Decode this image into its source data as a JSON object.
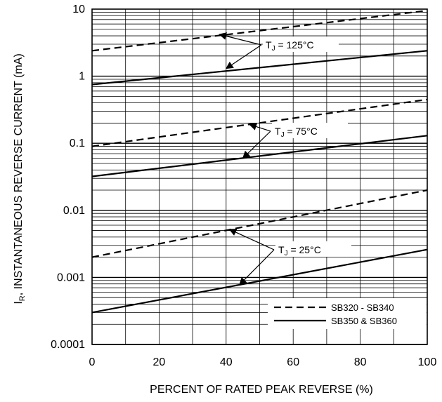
{
  "chart_data": {
    "type": "line",
    "title": "",
    "xlabel": "PERCENT OF RATED PEAK REVERSE (%)",
    "ylabel_main": "I",
    "ylabel_sub": "R",
    "ylabel_rest": ", INSTANTANEOUS REVERSE CURRENT (mA)",
    "xlim": [
      0,
      100
    ],
    "ylim": [
      0.0001,
      10
    ],
    "yscale": "log",
    "grid": true,
    "x_ticks": [
      {
        "value": 0,
        "label": "0"
      },
      {
        "value": 20,
        "label": "20"
      },
      {
        "value": 40,
        "label": "40"
      },
      {
        "value": 60,
        "label": "60"
      },
      {
        "value": 80,
        "label": "80"
      },
      {
        "value": 100,
        "label": "100"
      }
    ],
    "y_ticks": [
      {
        "value": 10,
        "label": "10"
      },
      {
        "value": 1,
        "label": "1"
      },
      {
        "value": 0.1,
        "label": "0.1"
      },
      {
        "value": 0.01,
        "label": "0.01"
      },
      {
        "value": 0.001,
        "label": "0.001"
      },
      {
        "value": 0.0001,
        "label": "0.0001"
      }
    ],
    "legend": {
      "position": "bottom-right",
      "entries": [
        {
          "label": "SB320 - SB340",
          "style": "dashed"
        },
        {
          "label": "SB350 & SB360",
          "style": "solid"
        }
      ]
    },
    "series": [
      {
        "group": "125",
        "style": "dashed",
        "x": [
          0,
          100
        ],
        "y": [
          2.4,
          9.5
        ]
      },
      {
        "group": "125",
        "style": "solid",
        "x": [
          0,
          100
        ],
        "y": [
          0.75,
          2.4
        ]
      },
      {
        "group": "75",
        "style": "dashed",
        "x": [
          0,
          100
        ],
        "y": [
          0.09,
          0.45
        ]
      },
      {
        "group": "75",
        "style": "solid",
        "x": [
          0,
          100
        ],
        "y": [
          0.032,
          0.13
        ]
      },
      {
        "group": "25",
        "style": "dashed",
        "x": [
          0,
          100
        ],
        "y": [
          0.002,
          0.02
        ]
      },
      {
        "group": "25",
        "style": "solid",
        "x": [
          0,
          100
        ],
        "y": [
          0.0003,
          0.0026
        ]
      }
    ],
    "annotations": [
      {
        "main": "T",
        "sub": "J",
        "rest": " = 125°C",
        "targets": [
          {
            "x": 38,
            "y": 4.2
          },
          {
            "x": 40,
            "y": 1.3
          }
        ]
      },
      {
        "main": "T",
        "sub": "J",
        "rest": " = 75°C",
        "targets": [
          {
            "x": 47,
            "y": 0.19
          },
          {
            "x": 45,
            "y": 0.06
          }
        ]
      },
      {
        "main": "T",
        "sub": "J",
        "rest": " = 25°C",
        "targets": [
          {
            "x": 41,
            "y": 0.0052
          },
          {
            "x": 44,
            "y": 0.00078
          }
        ]
      }
    ]
  }
}
